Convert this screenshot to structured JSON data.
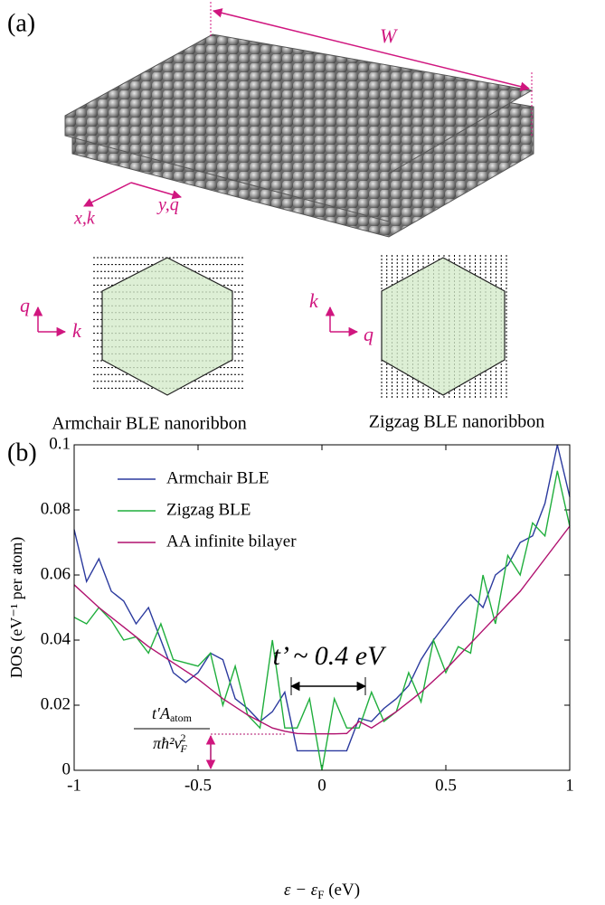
{
  "panel_a": {
    "label": "(a)",
    "width_label": "W",
    "axis_x": "x,k",
    "axis_y": "y,q",
    "armchair": {
      "vert": "q",
      "horiz": "k",
      "caption": "Armchair BLE nanoribbon"
    },
    "zigzag": {
      "vert": "k",
      "horiz": "q",
      "caption": "Zigzag BLE nanoribbon"
    }
  },
  "chart_data": {
    "type": "line",
    "panel_label": "(b)",
    "xlabel": "ε − ε",
    "xlabel_sub": "F",
    "xlabel_unit": " (eV)",
    "ylabel": "DOS (eV⁻¹ per atom)",
    "annotation": "t’ ~ 0.4 eV",
    "gap_label_num": "t′A",
    "gap_label_num_sub": "atom",
    "gap_label_den": "πħ²v",
    "gap_label_den_sub": "F",
    "gap_label_den_sup": "2",
    "xlim": [
      -1,
      1
    ],
    "ylim": [
      0,
      0.1
    ],
    "xticks": [
      -1,
      -0.5,
      0,
      0.5,
      1
    ],
    "yticks": [
      0,
      0.02,
      0.04,
      0.06,
      0.08,
      0.1
    ],
    "x": [
      -1,
      -0.95,
      -0.9,
      -0.85,
      -0.8,
      -0.75,
      -0.7,
      -0.65,
      -0.6,
      -0.55,
      -0.5,
      -0.45,
      -0.4,
      -0.35,
      -0.3,
      -0.25,
      -0.2,
      -0.15,
      -0.1,
      -0.05,
      0,
      0.05,
      0.1,
      0.15,
      0.2,
      0.25,
      0.3,
      0.35,
      0.4,
      0.45,
      0.5,
      0.55,
      0.6,
      0.65,
      0.7,
      0.75,
      0.8,
      0.85,
      0.9,
      0.95,
      1
    ],
    "series": [
      {
        "name": "Armchair BLE",
        "color": "#2b3a9e",
        "values": [
          0.074,
          0.058,
          0.065,
          0.055,
          0.052,
          0.045,
          0.05,
          0.04,
          0.03,
          0.027,
          0.03,
          0.036,
          0.034,
          0.022,
          0.019,
          0.015,
          0.018,
          0.024,
          0.006,
          0.006,
          0.006,
          0.006,
          0.006,
          0.016,
          0.015,
          0.019,
          0.022,
          0.026,
          0.034,
          0.04,
          0.045,
          0.05,
          0.054,
          0.05,
          0.06,
          0.063,
          0.07,
          0.072,
          0.082,
          0.1,
          0.084
        ]
      },
      {
        "name": "Zigzag BLE",
        "color": "#1fae3c",
        "values": [
          0.047,
          0.045,
          0.05,
          0.046,
          0.04,
          0.041,
          0.036,
          0.045,
          0.034,
          0.033,
          0.032,
          0.036,
          0.02,
          0.032,
          0.017,
          0.013,
          0.04,
          0.013,
          0.013,
          0.022,
          0,
          0.022,
          0.013,
          0.013,
          0.024,
          0.015,
          0.018,
          0.03,
          0.021,
          0.04,
          0.03,
          0.038,
          0.036,
          0.06,
          0.045,
          0.066,
          0.06,
          0.076,
          0.072,
          0.092,
          0.075
        ]
      },
      {
        "name": "AA infinite bilayer",
        "color": "#b0106e",
        "values": [
          0.057,
          0.0535,
          0.05,
          0.047,
          0.044,
          0.041,
          0.038,
          0.0355,
          0.033,
          0.0305,
          0.028,
          0.025,
          0.022,
          0.0195,
          0.017,
          0.015,
          0.013,
          0.012,
          0.0113,
          0.0112,
          0.0112,
          0.0112,
          0.0113,
          0.015,
          0.013,
          0.0155,
          0.018,
          0.021,
          0.024,
          0.0275,
          0.031,
          0.035,
          0.039,
          0.043,
          0.047,
          0.051,
          0.055,
          0.06,
          0.065,
          0.07,
          0.075
        ]
      }
    ]
  }
}
